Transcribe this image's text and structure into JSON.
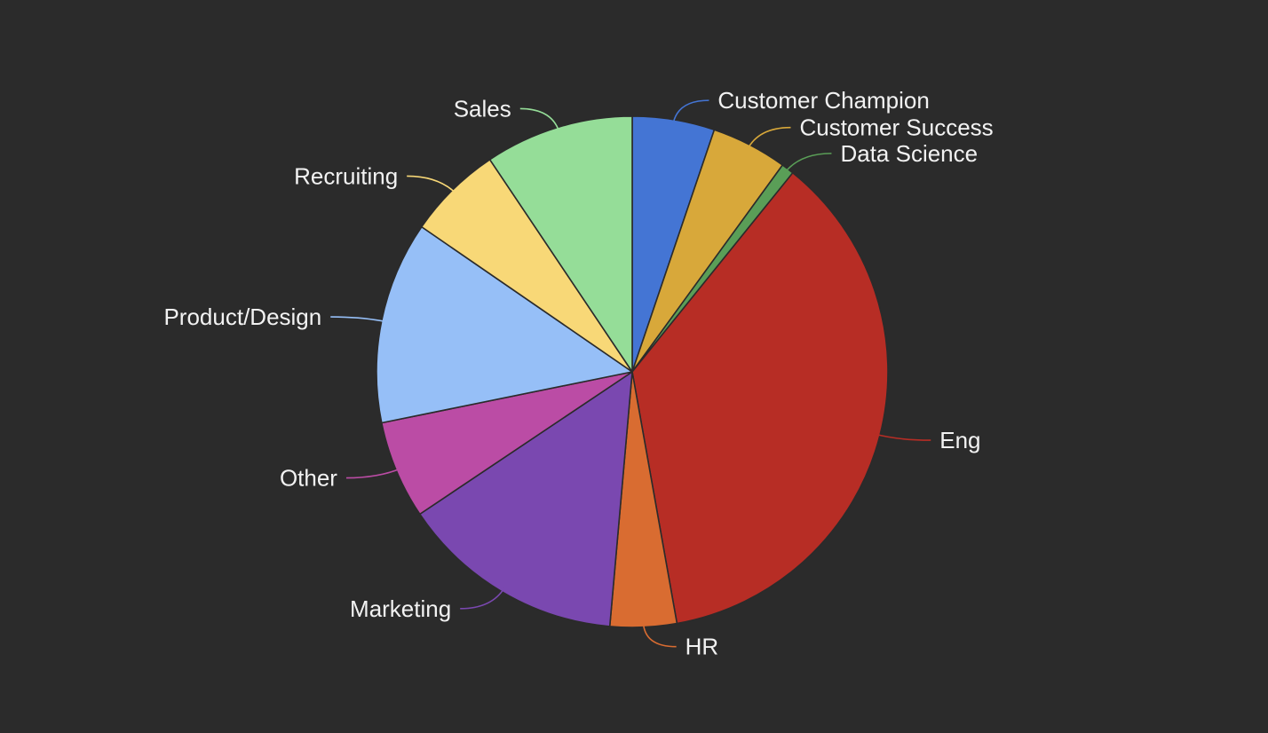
{
  "chart_data": {
    "type": "pie",
    "title": "",
    "start_angle_deg": 0,
    "direction": "clockwise",
    "slices": [
      {
        "label": "Customer Champion",
        "value": 5.2,
        "color": "#4475d4"
      },
      {
        "label": "Customer Success",
        "value": 4.8,
        "color": "#d8a83a"
      },
      {
        "label": "Data Science",
        "value": 0.8,
        "color": "#5a9e57"
      },
      {
        "label": "Eng",
        "value": 36.4,
        "color": "#b72d25"
      },
      {
        "label": "HR",
        "value": 4.2,
        "color": "#d96c31"
      },
      {
        "label": "Marketing",
        "value": 14.2,
        "color": "#7a48b0"
      },
      {
        "label": "Other",
        "value": 6.2,
        "color": "#bb4ca5"
      },
      {
        "label": "Product/Design",
        "value": 12.8,
        "color": "#96bff7"
      },
      {
        "label": "Recruiting",
        "value": 6.0,
        "color": "#f8d877"
      },
      {
        "label": "Sales",
        "value": 9.4,
        "color": "#95dd98"
      }
    ]
  }
}
